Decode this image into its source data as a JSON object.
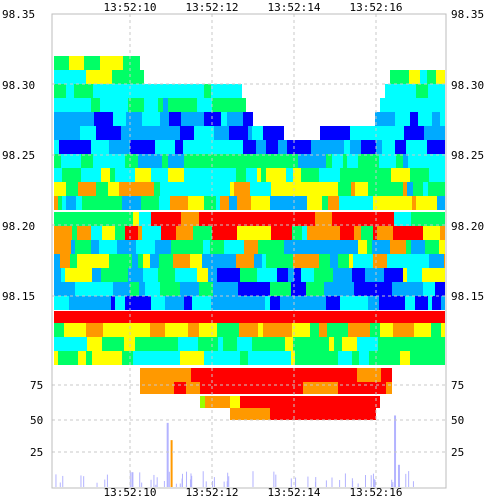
{
  "chart_data": {
    "type": "heatmap",
    "title": "",
    "xlabel": "",
    "ylabel": "",
    "x_ticks": [
      "13:52:10",
      "13:52:12",
      "13:52:14",
      "13:52:16"
    ],
    "price_axis": {
      "ticks": [
        "98.35",
        "98.30",
        "98.25",
        "98.20",
        "98.15"
      ],
      "ylim": [
        98.11,
        98.35
      ]
    },
    "volume_axis": {
      "ticks": [
        "75",
        "50",
        "25"
      ],
      "ylim": [
        0,
        90
      ]
    },
    "time_range": [
      "13:52:08",
      "13:52:18"
    ],
    "grid": true,
    "colormap": [
      "#0000ff",
      "#00aaff",
      "#00ffff",
      "#00ff66",
      "#ffff00",
      "#ff9900",
      "#ff0000"
    ],
    "volume_bars": [
      {
        "t": "13:52:10.9",
        "value": 52,
        "color": "#b3b3ff"
      },
      {
        "t": "13:52:16.7",
        "value": 58,
        "color": "#b3b3ff"
      },
      {
        "t": "13:52:16.8",
        "value": 18,
        "color": "#b3b3ff"
      },
      {
        "t": "13:52:11.0",
        "value": 38,
        "color": "#ff9900"
      },
      {
        "t": "13:52:10.0",
        "value": 12,
        "color": "#b3b3ff"
      }
    ]
  }
}
